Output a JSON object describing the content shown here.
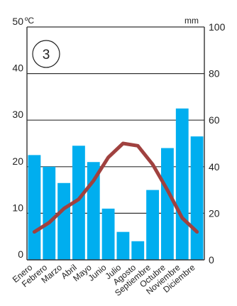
{
  "chart_data": {
    "type": "bar",
    "badge": "3",
    "left_unit": "ºC",
    "right_unit": "mm",
    "left_ticks": [
      "0",
      "10",
      "20",
      "30",
      "40",
      "50"
    ],
    "right_ticks": [
      "0",
      "20",
      "40",
      "60",
      "80",
      "100"
    ],
    "left_ylim": [
      0,
      50
    ],
    "right_ylim": [
      0,
      100
    ],
    "categories": [
      "Enero",
      "Febrero",
      "Marzo",
      "Abril",
      "Mayo",
      "Junio",
      "Julio",
      "Agosto",
      "Septiembre",
      "Octubre",
      "Noviembre",
      "Diciembre"
    ],
    "series": [
      {
        "type": "bar",
        "axis": "right",
        "color": "#00aeef",
        "values": [
          45,
          40,
          33,
          49,
          42,
          22,
          12,
          8,
          30,
          48,
          65,
          53
        ]
      },
      {
        "type": "line",
        "axis": "left",
        "color": "#a0413f",
        "values": [
          6,
          8,
          11,
          13,
          17,
          22,
          25,
          24.5,
          20.5,
          15,
          9,
          6
        ]
      }
    ],
    "grid": "horizontal"
  }
}
